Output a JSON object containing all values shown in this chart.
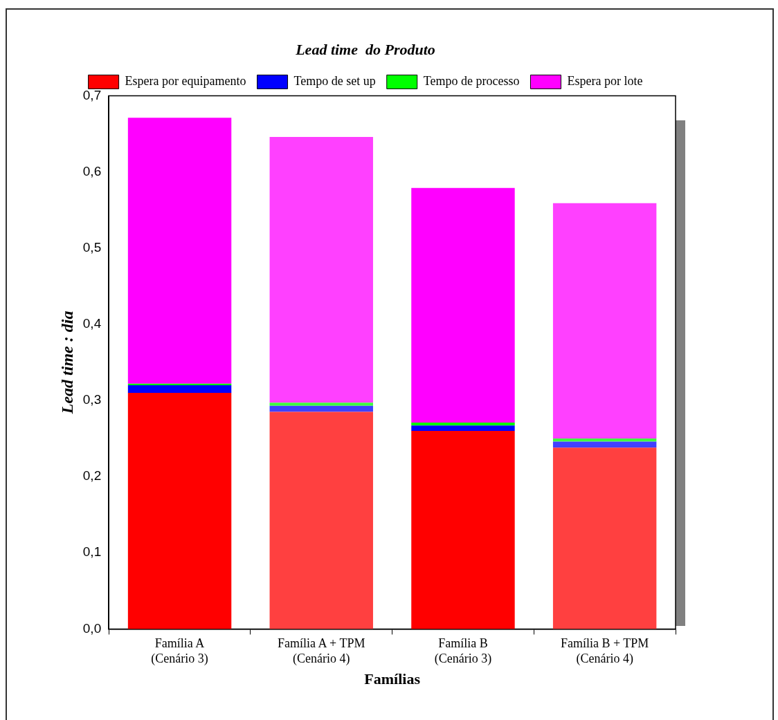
{
  "chart_data": {
    "type": "bar",
    "title": "Lead time  do Produto",
    "xlabel": "Famílias",
    "ylabel": "Lead time : dia",
    "categories": [
      "Família A\n(Cenário 3)",
      "Família A + TPM\n(Cenário 4)",
      "Família B\n(Cenário 3)",
      "Família B + TPM\n(Cenário 4)"
    ],
    "stacked": true,
    "legend": "top",
    "grid": false,
    "ylim": [
      0,
      0.7
    ],
    "yticks": [
      {
        "value": 0,
        "label": "0,0"
      },
      {
        "value": 0.1,
        "label": "0,1"
      },
      {
        "value": 0.2,
        "label": "0,2"
      },
      {
        "value": 0.3,
        "label": "0,3"
      },
      {
        "value": 0.4,
        "label": "0,4"
      },
      {
        "value": 0.5,
        "label": "0,5"
      },
      {
        "value": 0.6,
        "label": "0,6"
      },
      {
        "value": 0.7,
        "label": "0,7"
      }
    ],
    "series": [
      {
        "name": "Espera por equipamento",
        "color": "#ff0000",
        "colors": [
          "#ff0000",
          "#ff4040",
          "#ff0000",
          "#ff4040"
        ],
        "values": [
          0.31,
          0.285,
          0.26,
          0.238
        ]
      },
      {
        "name": "Tempo de set up",
        "color": "#0000ff",
        "colors": [
          "#0000ff",
          "#4040ff",
          "#0000ff",
          "#4040ff"
        ],
        "values": [
          0.01,
          0.008,
          0.007,
          0.008
        ]
      },
      {
        "name": "Tempo de processo",
        "color": "#00ff00",
        "colors": [
          "#00ff00",
          "#40ff40",
          "#00ff00",
          "#40ff40"
        ],
        "values": [
          0.002,
          0.004,
          0.004,
          0.004
        ]
      },
      {
        "name": "Espera por lote",
        "color": "#ff00ff",
        "colors": [
          "#ff00ff",
          "#ff40ff",
          "#ff00ff",
          "#ff40ff"
        ],
        "values": [
          0.349,
          0.349,
          0.308,
          0.309
        ]
      }
    ]
  }
}
